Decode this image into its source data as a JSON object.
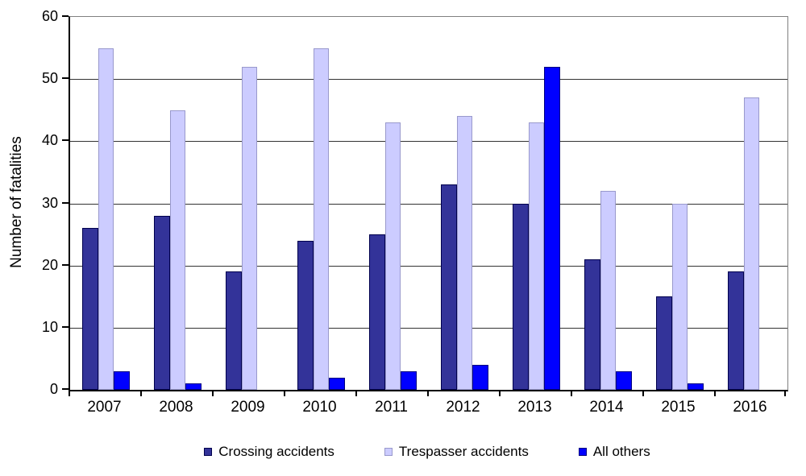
{
  "chart_data": {
    "type": "bar",
    "title": "",
    "xlabel": "",
    "ylabel": "Number of fatalities",
    "ylim": [
      0,
      60
    ],
    "yticks": [
      0,
      10,
      20,
      30,
      40,
      50,
      60
    ],
    "grid": true,
    "legend_position": "bottom",
    "categories": [
      "2007",
      "2008",
      "2009",
      "2010",
      "2011",
      "2012",
      "2013",
      "2014",
      "2015",
      "2016"
    ],
    "series": [
      {
        "name": "Crossing accidents",
        "color": "#333399",
        "border_color": "#00004d",
        "values": [
          26,
          28,
          19,
          24,
          25,
          33,
          30,
          21,
          15,
          19
        ]
      },
      {
        "name": "Trespasser accidents",
        "color": "#ccccff",
        "border_color": "#9999cc",
        "values": [
          55,
          45,
          52,
          55,
          43,
          44,
          43,
          32,
          30,
          47
        ]
      },
      {
        "name": "All others",
        "color": "#0000ff",
        "border_color": "#000080",
        "values": [
          3,
          1,
          0,
          2,
          3,
          4,
          52,
          3,
          1,
          0
        ]
      }
    ]
  },
  "colors": {
    "background": "#ffffff",
    "gridline": "#333333",
    "axis": "#000000",
    "plot_border": "#808080",
    "text": "#000000"
  }
}
